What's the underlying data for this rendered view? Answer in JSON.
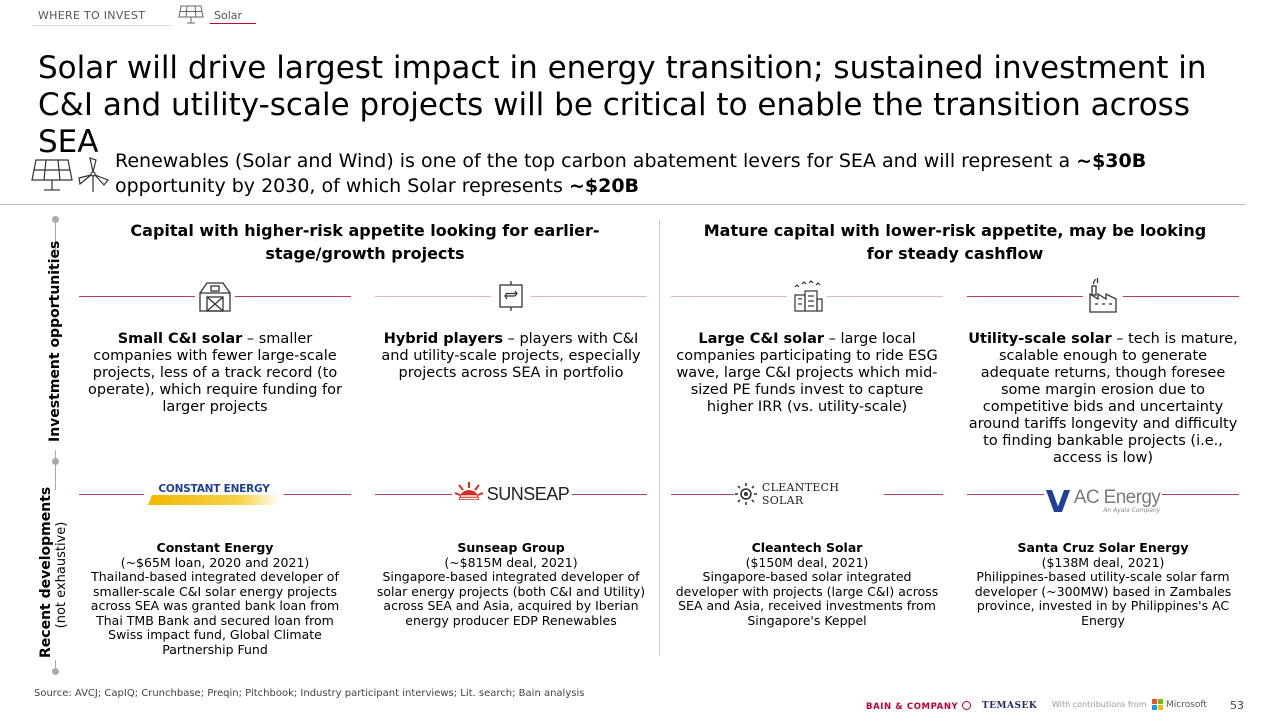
{
  "breadcrumb": {
    "section": "WHERE TO INVEST",
    "topic": "Solar"
  },
  "title": "Solar will drive largest impact in energy transition; sustained investment in C&I and utility-scale projects will be critical to enable the transition across SEA",
  "intro": {
    "text1": "Renewables (Solar and Wind) is one of the top carbon abatement levers for SEA and will represent a ",
    "bold1": "~$30B",
    "text2": " opportunity by 2030, of which Solar represents ",
    "bold2": "~$20B"
  },
  "rows": {
    "investment": "Investment opportunities",
    "recent": "Recent developments",
    "recent_sub": "(not exhaustive)"
  },
  "headers": {
    "left": "Capital with higher-risk appetite looking for earlier-stage/growth projects",
    "right": "Mature capital with lower-risk appetite, may be looking for steady cashflow"
  },
  "opportunities": [
    {
      "icon": "barn-icon",
      "bold": "Small C&I solar",
      "text": " – smaller companies with fewer large-scale projects, less of a track record (to operate), which require funding for larger projects"
    },
    {
      "icon": "hybrid-icon",
      "bold": "Hybrid players",
      "text": " – players with C&I and utility-scale projects, especially projects across SEA in portfolio"
    },
    {
      "icon": "buildings-icon",
      "bold": "Large C&I solar",
      "text": " – large local companies participating to ride ESG wave, large C&I projects which mid-sized PE funds invest to capture higher IRR (vs. utility-scale)"
    },
    {
      "icon": "factory-icon",
      "bold": "Utility-scale solar",
      "text": " – tech is mature, scalable enough to generate adequate returns, though foresee some margin erosion due to competitive bids and uncertainty around tariffs longevity and difficulty to finding bankable projects (i.e., access is low)"
    }
  ],
  "developments": [
    {
      "logo": "CONSTANT ENERGY",
      "name": "Constant Energy",
      "deal": "(~$65M loan, 2020 and 2021)",
      "text": "Thailand-based integrated developer of smaller-scale C&I solar energy projects across SEA was granted bank loan from Thai TMB Bank and secured loan from Swiss impact fund, Global Climate Partnership Fund"
    },
    {
      "logo": "SUNSEAP",
      "name": "Sunseap Group",
      "deal": "(~$815M deal, 2021)",
      "text": "Singapore-based integrated developer of solar energy projects (both C&I and Utility) across SEA and Asia, acquired by Iberian energy producer EDP Renewables"
    },
    {
      "logo": "CLEANTECH SOLAR",
      "name": "Cleantech Solar",
      "deal": "($150M deal, 2021)",
      "text": "Singapore-based solar integrated developer with projects (large C&I) across SEA and Asia, received investments from Singapore's Keppel"
    },
    {
      "logo": "AC Energy",
      "logo_sub": "An Ayala Company",
      "name": "Santa Cruz Solar Energy",
      "deal": "($138M deal, 2021)",
      "text": "Philippines-based utility-scale solar farm developer (~300MW) based in Zambales province, invested in by Philippines's AC Energy"
    }
  ],
  "footer": {
    "source": "Source: AVCJ; CapIQ; Crunchbase; Preqin; Pitchbook; Industry participant interviews; Lit. search; Bain analysis",
    "bain": "BAIN & COMPANY",
    "temasek": "TEMASEK",
    "with": "With contributions from",
    "microsoft": "Microsoft",
    "page": "53"
  },
  "colors": {
    "accent": "#b33b6b",
    "bain_red": "#c00032"
  }
}
